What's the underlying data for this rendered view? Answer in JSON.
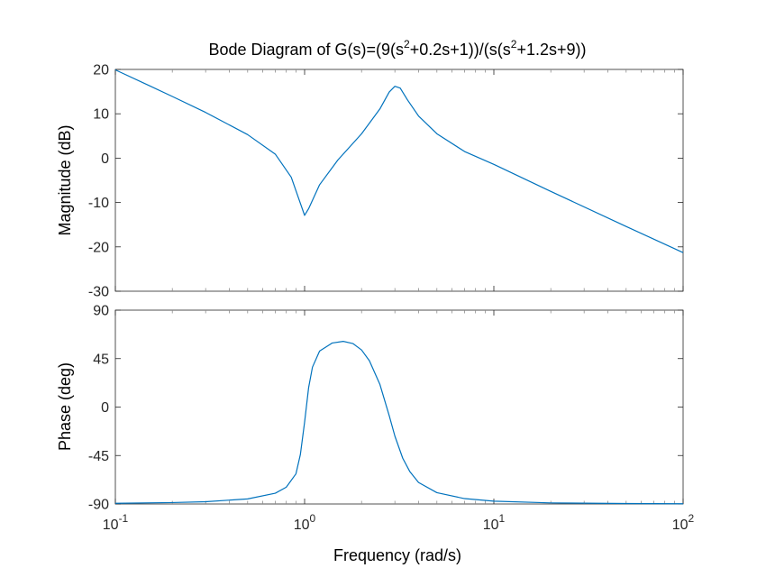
{
  "chart_data": {
    "type": "line",
    "title_parts": {
      "t1": "Bode Diagram of G(s)=(9(s",
      "sup1": "2",
      "t2": "+0.2s+1))/(s(s",
      "sup2": "2",
      "t3": "+1.2s+9))"
    },
    "xlabel": "Frequency  (rad/s)",
    "x_scale": "log",
    "xlim": [
      0.1,
      100
    ],
    "x_ticks": [
      {
        "base": "10",
        "exp": "-1"
      },
      {
        "base": "10",
        "exp": "0"
      },
      {
        "base": "10",
        "exp": "1"
      },
      {
        "base": "10",
        "exp": "2"
      }
    ],
    "colors": {
      "line": "#0072bd",
      "axes": "#262626",
      "minor_tick": "#8c8c8c"
    },
    "magnitude": {
      "ylabel": "Magnitude (dB)",
      "ylim": [
        -30,
        20
      ],
      "y_ticks": [
        "20",
        "10",
        "0",
        "-10",
        "-20",
        "-30"
      ],
      "x": [
        0.1,
        0.15,
        0.2,
        0.3,
        0.5,
        0.7,
        0.85,
        0.95,
        1.0,
        1.05,
        1.2,
        1.5,
        2.0,
        2.5,
        2.8,
        3.0,
        3.2,
        3.5,
        4.0,
        5.0,
        7.0,
        10,
        20,
        50,
        100
      ],
      "y": [
        19.9,
        16.4,
        13.9,
        10.3,
        5.3,
        0.9,
        -4.3,
        -10.2,
        -12.9,
        -11.4,
        -6.0,
        -0.4,
        5.5,
        11.1,
        14.9,
        16.2,
        15.8,
        13.1,
        9.5,
        5.5,
        1.5,
        -1.4,
        -7.5,
        -15.4,
        -21.3
      ]
    },
    "phase": {
      "ylabel": "Phase (deg)",
      "ylim": [
        -90,
        90
      ],
      "y_ticks": [
        "90",
        "45",
        "0",
        "-45",
        "-90"
      ],
      "x": [
        0.1,
        0.2,
        0.3,
        0.5,
        0.7,
        0.8,
        0.9,
        0.95,
        1.0,
        1.05,
        1.1,
        1.2,
        1.4,
        1.6,
        1.8,
        2.0,
        2.2,
        2.5,
        2.8,
        3.0,
        3.3,
        3.6,
        4.0,
        5.0,
        7.0,
        10,
        20,
        50,
        100
      ],
      "y": [
        -89.4,
        -88.7,
        -87.9,
        -85.3,
        -80.0,
        -74.4,
        -62.0,
        -44.0,
        -14.0,
        18.0,
        37.0,
        52.0,
        59.5,
        61.0,
        59.0,
        53.0,
        43.0,
        21.0,
        -8.0,
        -27.0,
        -47.5,
        -60.0,
        -70.0,
        -79.5,
        -85.0,
        -87.4,
        -89.0,
        -89.6,
        -89.8
      ]
    }
  }
}
